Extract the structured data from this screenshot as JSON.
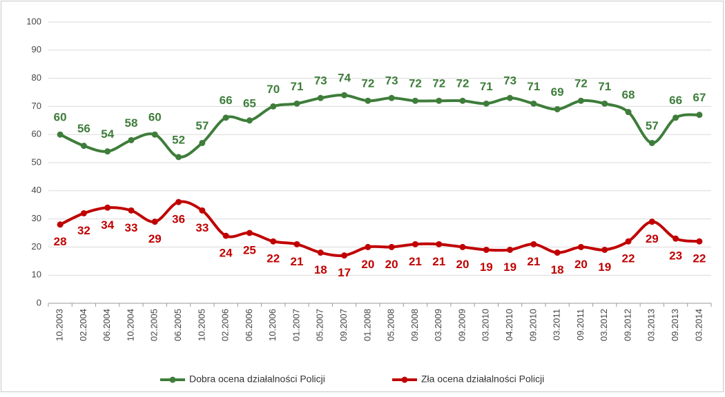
{
  "chart_data": {
    "type": "line",
    "categories": [
      "10.2003",
      "02.2004",
      "06.2004",
      "10.2004",
      "02.2005",
      "06.2005",
      "10.2005",
      "02.2006",
      "06.2006",
      "10.2006",
      "01.2007",
      "05.2007",
      "09.2007",
      "01.2008",
      "05.2008",
      "09.2008",
      "03.2009",
      "09.2009",
      "03.2010",
      "04.2010",
      "09.2010",
      "03.2011",
      "09.2011",
      "03.2012",
      "09.2012",
      "03.2013",
      "09.2013",
      "03.2014"
    ],
    "series": [
      {
        "name": "Dobra ocena działalności Policji",
        "color": "#3e7d3a",
        "values": [
          60,
          56,
          54,
          58,
          60,
          52,
          57,
          66,
          65,
          70,
          71,
          73,
          74,
          72,
          73,
          72,
          72,
          72,
          71,
          73,
          71,
          69,
          72,
          71,
          68,
          57,
          66,
          67
        ]
      },
      {
        "name": "Zła ocena działalności Policji",
        "color": "#c00000",
        "values": [
          28,
          32,
          34,
          33,
          29,
          36,
          33,
          24,
          25,
          22,
          21,
          18,
          17,
          20,
          20,
          21,
          21,
          20,
          19,
          19,
          21,
          18,
          20,
          19,
          22,
          29,
          23,
          22
        ]
      }
    ],
    "ylim": [
      0,
      100
    ],
    "yticks": [
      0,
      10,
      20,
      30,
      40,
      50,
      60,
      70,
      80,
      90,
      100
    ],
    "grid": true,
    "legend": "bottom"
  }
}
